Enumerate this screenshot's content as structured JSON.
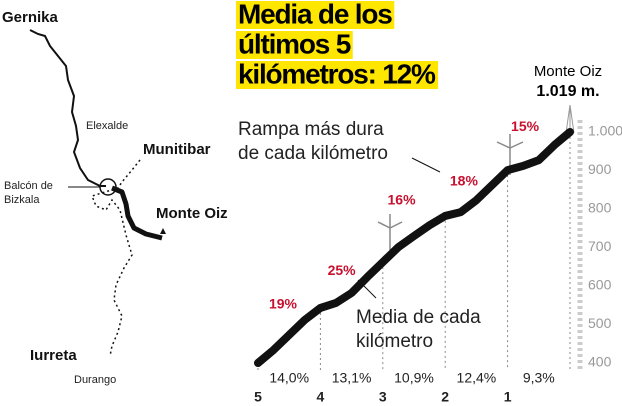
{
  "chart_data": {
    "type": "line",
    "title_lines": [
      "Media de los",
      "últimos 5",
      "kilómetros: 12%"
    ],
    "annotations": {
      "max": [
        "Rampa más dura",
        "de cada kilómetro"
      ],
      "avg": [
        "Media de cada",
        "kilómetro"
      ],
      "summit_name": "Monte Oiz",
      "summit_height": "1.019 m."
    },
    "x": [
      5,
      4.75,
      4.5,
      4.25,
      4,
      3.75,
      3.5,
      3.25,
      3,
      2.75,
      2.5,
      2.25,
      2,
      1.75,
      1.5,
      1.25,
      1,
      0.75,
      0.5,
      0.25,
      0
    ],
    "series": [
      {
        "color": "#111111",
        "values": [
          400,
          434,
          473,
          512,
          543,
          556,
          582,
          623,
          662,
          701,
          730,
          758,
          782,
          792,
          823,
          862,
          901,
          912,
          927,
          966,
          1000
        ]
      }
    ],
    "xlim": [
      5,
      0
    ],
    "xticks": [
      5,
      4,
      3,
      2,
      1
    ],
    "ylim": [
      400,
      1000
    ],
    "yticks": [
      400,
      500,
      600,
      700,
      800,
      900,
      {
        "value": 1000,
        "label": "1.000"
      }
    ],
    "max_grade": {
      "values": [
        19,
        25,
        16,
        18,
        15
      ],
      "value_labels": [
        "19%",
        "25%",
        "16%",
        "18%",
        "15%"
      ]
    },
    "avg_grade": {
      "values": [
        14.0,
        13.1,
        10.9,
        12.4,
        9.3
      ],
      "value_labels": [
        "14,0%",
        "13,1%",
        "10,9%",
        "12,4%",
        "9,3%"
      ]
    }
  },
  "map": {
    "places": [
      "Gernika",
      "Elexalde",
      "Munitibar",
      "Balcón de",
      "Bizkala",
      "Monte Oiz",
      "Iurreta",
      "Durango"
    ]
  }
}
